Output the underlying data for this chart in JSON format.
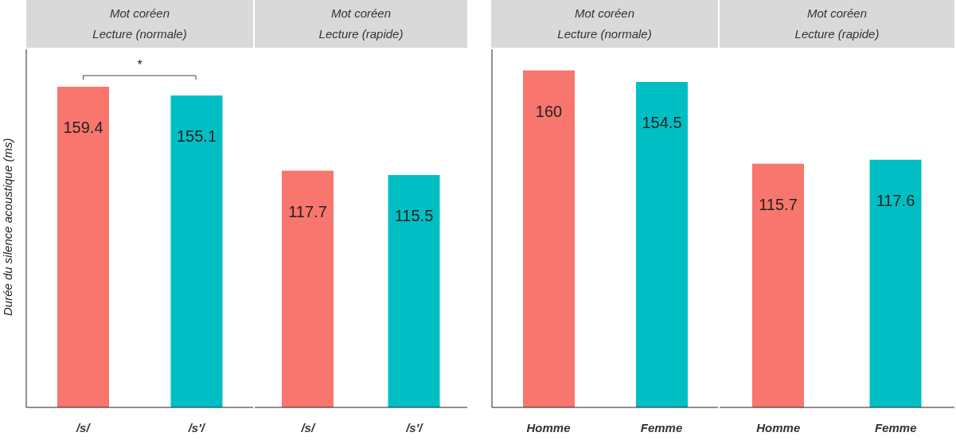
{
  "chart_data": [
    {
      "type": "bar",
      "title": "Mot coréen",
      "subtitle": "Lecture (normale)",
      "ylabel": "Durée du silence acoustique (ms)",
      "categories": [
        "/s/",
        "/s'/"
      ],
      "values": [
        159.4,
        155.1
      ],
      "colors": [
        "#f8766d",
        "#00bfc4"
      ],
      "ylim": [
        0,
        178
      ],
      "tick_labels": "x",
      "data_labels": true,
      "annotations": [
        "*"
      ]
    },
    {
      "type": "bar",
      "title": "Mot coréen",
      "subtitle": "Lecture (rapide)",
      "categories": [
        "/s/",
        "/s'/"
      ],
      "values": [
        117.7,
        115.5
      ],
      "colors": [
        "#f8766d",
        "#00bfc4"
      ],
      "tick_labels": "x",
      "data_labels": true
    },
    {
      "type": "bar",
      "title": "Mot coréen",
      "subtitle": "Lecture (normale)",
      "categories": [
        "Homme",
        "Femme"
      ],
      "values": [
        160,
        154.5
      ],
      "colors": [
        "#f8766d",
        "#00bfc4"
      ],
      "ylim": [
        0,
        170
      ],
      "tick_labels": "x",
      "data_labels": true
    },
    {
      "type": "bar",
      "title": "Mot coréen",
      "subtitle": "Lecture (rapide)",
      "categories": [
        "Homme",
        "Femme"
      ],
      "values": [
        115.7,
        117.6
      ],
      "colors": [
        "#f8766d",
        "#00bfc4"
      ],
      "tick_labels": "x",
      "data_labels": true
    }
  ]
}
